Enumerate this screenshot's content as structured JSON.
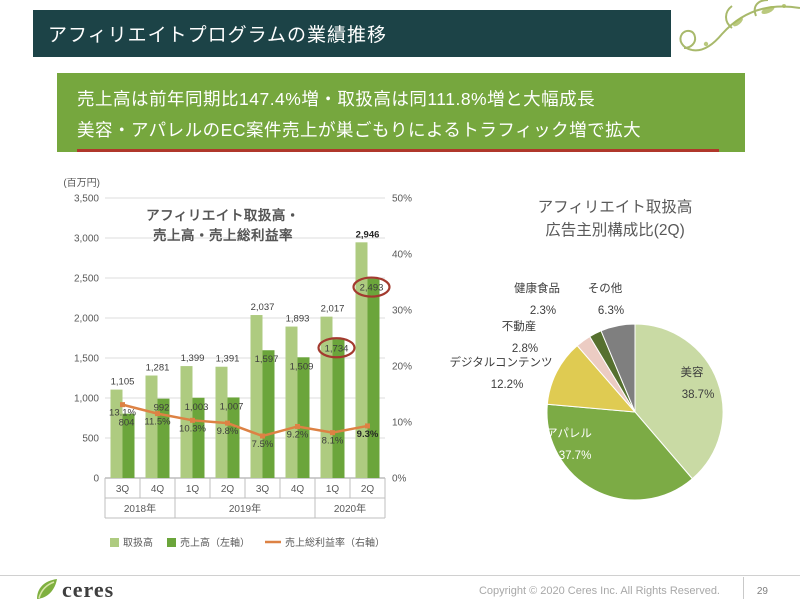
{
  "header": {
    "title": "アフィリエイトプログラムの業績推移"
  },
  "highlight": {
    "line1": "売上高は前年同期比147.4%増・取扱高は同111.8%増と大幅成長",
    "line2": "美容・アパレルのEC案件売上が巣ごもりによるトラフィック増で拡大"
  },
  "colors": {
    "header_bg": "#1c4347",
    "highlight_bg": "#76a73e",
    "underline_red": "#b0372b",
    "bar_light": "#aecb80",
    "bar_dark": "#6ba53b",
    "line_orange": "#dd8244",
    "circle_red": "#a33a2f",
    "axis_text": "#595959"
  },
  "chart_data": [
    {
      "type": "bar",
      "title_line1": "アフィリエイト取扱高・",
      "title_line2": "売上高・売上総利益率",
      "unit_label": "(百万円)",
      "categories": [
        "3Q",
        "4Q",
        "1Q",
        "2Q",
        "3Q",
        "4Q",
        "1Q",
        "2Q"
      ],
      "year_groups": [
        {
          "label": "2018年",
          "span": 2
        },
        {
          "label": "2019年",
          "span": 4
        },
        {
          "label": "2020年",
          "span": 2
        }
      ],
      "series": [
        {
          "name": "取扱高",
          "type": "bar",
          "values": [
            1105,
            1281,
            1399,
            1391,
            2037,
            1893,
            2017,
            2946
          ]
        },
        {
          "name": "売上高（左軸）",
          "type": "bar",
          "values": [
            804,
            992,
            1003,
            1007,
            1597,
            1509,
            1734,
            2493
          ]
        },
        {
          "name": "売上総利益率（右軸）",
          "type": "line",
          "values": [
            13.1,
            11.5,
            10.3,
            9.8,
            7.5,
            9.2,
            8.1,
            9.3
          ]
        }
      ],
      "left_axis": {
        "min": 0,
        "max": 3500,
        "step": 500
      },
      "right_axis": {
        "min": 0,
        "max": 50,
        "step": 10,
        "suffix": "%"
      },
      "circled_values": [
        1734,
        2493
      ],
      "grid": true,
      "legend_position": "bottom"
    },
    {
      "type": "pie",
      "title_line1": "アフィリエイト取扱高",
      "title_line2": "広告主別構成比(2Q)",
      "slices": [
        {
          "label": "美容",
          "value": 38.7,
          "color": "#c9daa4"
        },
        {
          "label": "アパレル",
          "value": 37.7,
          "color": "#7cab45"
        },
        {
          "label": "デジタルコンテンツ",
          "value": 12.2,
          "color": "#dfcb52"
        },
        {
          "label": "不動産",
          "value": 2.8,
          "color": "#ecccc3"
        },
        {
          "label": "健康食品",
          "value": 2.3,
          "color": "#56702f"
        },
        {
          "label": "その他",
          "value": 6.3,
          "color": "#7f7f7f"
        }
      ],
      "start_angle_deg": -90,
      "direction": "clockwise"
    }
  ],
  "footer": {
    "logo_text": "ceres",
    "copyright": "Copyright © 2020 Ceres Inc. All Rights Reserved.",
    "page_number": "29"
  }
}
